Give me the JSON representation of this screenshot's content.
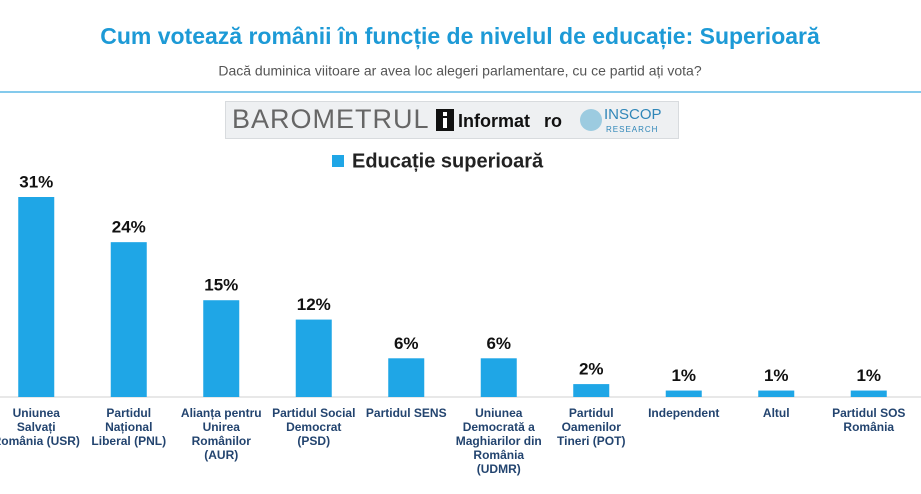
{
  "branding": {
    "barometer": "BAROMETRUL",
    "informat": "Informat",
    "informat_suffix": "ro",
    "inscop": "INSCOP",
    "inscop_sub": "RESEARCH"
  },
  "chart_data": {
    "type": "bar",
    "title": "Cum votează românii în funcție de nivelul de educație: Superioară",
    "subtitle": "Dacă duminica viitoare ar avea loc alegeri parlamentare, cu ce partid ați vota?",
    "categories": [
      "Uniunea Salvați România (USR)",
      "Partidul Național Liberal (PNL)",
      "Alianța pentru Unirea Românilor (AUR)",
      "Partidul Social Democrat (PSD)",
      "Partidul SENS",
      "Uniunea Democrată a Maghiarilor din România (UDMR)",
      "Partidul Oamenilor Tineri (POT)",
      "Independent",
      "Altul",
      "Partidul SOS România"
    ],
    "series": [
      {
        "name": "Educație superioară",
        "color": "#1fa6e6",
        "values": [
          31,
          24,
          15,
          12,
          6,
          6,
          2,
          1,
          1,
          1
        ],
        "value_labels": [
          "31%",
          "24%",
          "15%",
          "12%",
          "6%",
          "6%",
          "2%",
          "1%",
          "1%",
          "1%"
        ]
      }
    ]
  }
}
